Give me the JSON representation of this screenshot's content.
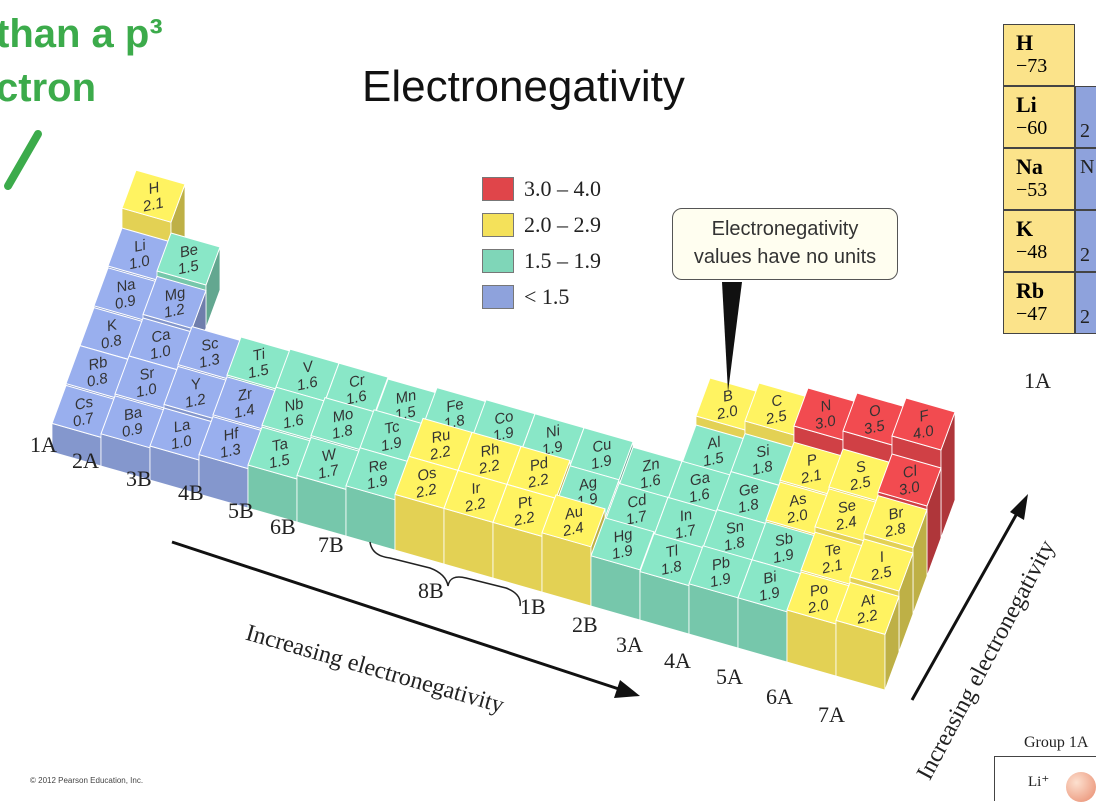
{
  "slide": {
    "title": "Electronegativity",
    "fragment_line1": "than a p³",
    "fragment_line2": "ctron",
    "copyright": "© 2012 Pearson Education, Inc."
  },
  "legend": [
    {
      "label": "3.0 – 4.0",
      "color": "#e0454a"
    },
    {
      "label": "2.0 – 2.9",
      "color": "#f4e15a"
    },
    {
      "label": "1.5 – 1.9",
      "color": "#7fd6b8"
    },
    {
      "label": "< 1.5",
      "color": "#8ea2dc"
    }
  ],
  "callout": {
    "line1": "Electronegativity",
    "line2": "values have no units"
  },
  "arrows": {
    "horizontal_label": "Increasing electronegativity",
    "vertical_label": "Increasing electronegativity"
  },
  "group_labels": [
    "1A",
    "2A",
    "3B",
    "4B",
    "5B",
    "6B",
    "7B",
    "8B",
    "1B",
    "2B",
    "3A",
    "4A",
    "5A",
    "6A",
    "7A"
  ],
  "colors": {
    "red": "#e0454a",
    "yellow": "#f4e15a",
    "teal": "#7fd6b8",
    "lightblue": "#c9e7f2",
    "blue": "#8ea2dc"
  },
  "elements": [
    {
      "symbol": "H",
      "value": "2.1"
    },
    {
      "symbol": "Li",
      "value": "1.0"
    },
    {
      "symbol": "Be",
      "value": "1.5"
    },
    {
      "symbol": "Na",
      "value": "0.9"
    },
    {
      "symbol": "Mg",
      "value": "1.2"
    },
    {
      "symbol": "K",
      "value": "0.8"
    },
    {
      "symbol": "Ca",
      "value": "1.0"
    },
    {
      "symbol": "Rb",
      "value": "0.8"
    },
    {
      "symbol": "Sr",
      "value": "1.0"
    },
    {
      "symbol": "Cs",
      "value": "0.7"
    },
    {
      "symbol": "Ba",
      "value": "0.9"
    },
    {
      "symbol": "Sc",
      "value": "1.3"
    },
    {
      "symbol": "Y",
      "value": "1.2"
    },
    {
      "symbol": "La",
      "value": "1.0"
    },
    {
      "symbol": "Ti",
      "value": "1.5"
    },
    {
      "symbol": "Zr",
      "value": "1.4"
    },
    {
      "symbol": "Hf",
      "value": "1.3"
    },
    {
      "symbol": "V",
      "value": "1.6"
    },
    {
      "symbol": "Nb",
      "value": "1.6"
    },
    {
      "symbol": "Ta",
      "value": "1.5"
    },
    {
      "symbol": "Cr",
      "value": "1.6"
    },
    {
      "symbol": "Mo",
      "value": "1.8"
    },
    {
      "symbol": "W",
      "value": "1.7"
    },
    {
      "symbol": "Mn",
      "value": "1.5"
    },
    {
      "symbol": "Tc",
      "value": "1.9"
    },
    {
      "symbol": "Re",
      "value": "1.9"
    },
    {
      "symbol": "Fe",
      "value": "1.8"
    },
    {
      "symbol": "Ru",
      "value": "2.2"
    },
    {
      "symbol": "Os",
      "value": "2.2"
    },
    {
      "symbol": "Co",
      "value": "1.9"
    },
    {
      "symbol": "Rh",
      "value": "2.2"
    },
    {
      "symbol": "Ir",
      "value": "2.2"
    },
    {
      "symbol": "Ni",
      "value": "1.9"
    },
    {
      "symbol": "Pd",
      "value": "2.2"
    },
    {
      "symbol": "Pt",
      "value": "2.2"
    },
    {
      "symbol": "Cu",
      "value": "1.9"
    },
    {
      "symbol": "Ag",
      "value": "1.9"
    },
    {
      "symbol": "Au",
      "value": "2.4"
    },
    {
      "symbol": "Zn",
      "value": "1.6"
    },
    {
      "symbol": "Cd",
      "value": "1.7"
    },
    {
      "symbol": "Hg",
      "value": "1.9"
    },
    {
      "symbol": "B",
      "value": "2.0"
    },
    {
      "symbol": "Al",
      "value": "1.5"
    },
    {
      "symbol": "Ga",
      "value": "1.6"
    },
    {
      "symbol": "In",
      "value": "1.7"
    },
    {
      "symbol": "Tl",
      "value": "1.8"
    },
    {
      "symbol": "C",
      "value": "2.5"
    },
    {
      "symbol": "Si",
      "value": "1.8"
    },
    {
      "symbol": "Ge",
      "value": "1.8"
    },
    {
      "symbol": "Sn",
      "value": "1.8"
    },
    {
      "symbol": "Pb",
      "value": "1.9"
    },
    {
      "symbol": "N",
      "value": "3.0"
    },
    {
      "symbol": "P",
      "value": "2.1"
    },
    {
      "symbol": "As",
      "value": "2.0"
    },
    {
      "symbol": "Sb",
      "value": "1.9"
    },
    {
      "symbol": "Bi",
      "value": "1.9"
    },
    {
      "symbol": "O",
      "value": "3.5"
    },
    {
      "symbol": "S",
      "value": "2.5"
    },
    {
      "symbol": "Se",
      "value": "2.4"
    },
    {
      "symbol": "Te",
      "value": "2.1"
    },
    {
      "symbol": "Po",
      "value": "2.0"
    },
    {
      "symbol": "F",
      "value": "4.0"
    },
    {
      "symbol": "Cl",
      "value": "3.0"
    },
    {
      "symbol": "Br",
      "value": "2.8"
    },
    {
      "symbol": "I",
      "value": "2.5"
    },
    {
      "symbol": "At",
      "value": "2.2"
    }
  ],
  "right_table": {
    "cells": [
      {
        "symbol": "H",
        "value": "−73"
      },
      {
        "symbol": "Li",
        "value": "−60"
      },
      {
        "symbol": "Na",
        "value": "−53"
      },
      {
        "symbol": "K",
        "value": "−48"
      },
      {
        "symbol": "Rb",
        "value": "−47"
      }
    ],
    "fragments": [
      "2",
      "N",
      "2",
      "2"
    ],
    "group_label": "1A",
    "bottom_label": "Group 1A",
    "ion_label": "Li⁺"
  }
}
